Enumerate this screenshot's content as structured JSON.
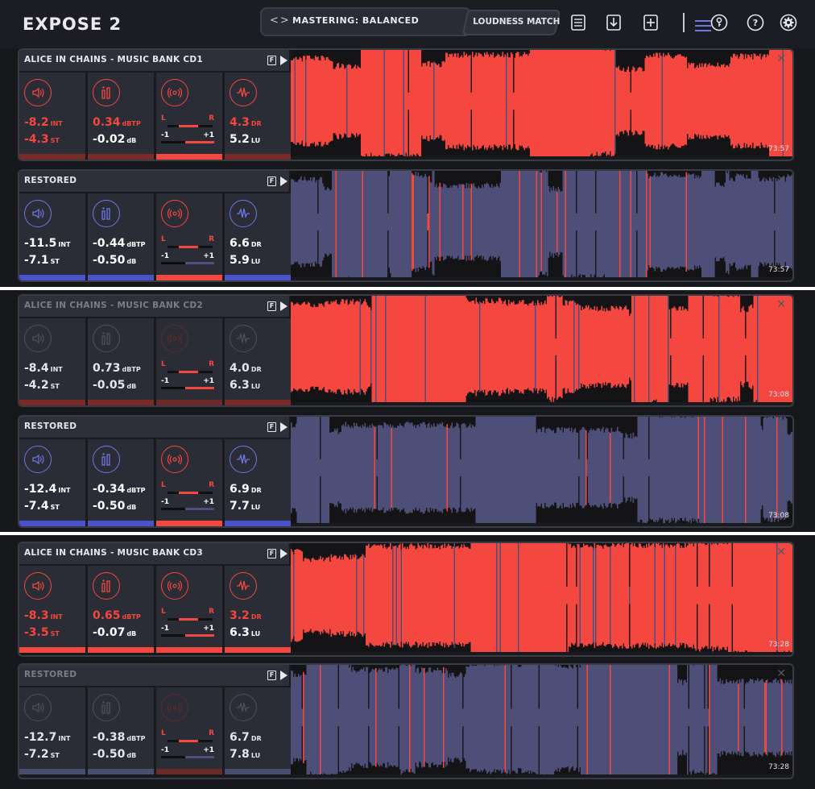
{
  "app": {
    "title": "EXPOSE 2"
  },
  "toolbar": {
    "preset_arrows": "<>",
    "preset_label": "MASTERING: BALANCED",
    "loudness_match_label": "LOUDNESS MATCH"
  },
  "colors": {
    "original": "#f4473f",
    "restored": "#4e4f79",
    "accent": "#6d76e6"
  },
  "tracks": [
    {
      "title": "ALICE IN CHAINS - MUSIC BANK CD1",
      "time": "73:57",
      "int": "-8.2",
      "int_unit": "INT",
      "st": "-4.3",
      "st_unit": "ST",
      "tp": "0.34",
      "tp_unit": "dBTP",
      "db": "-0.02",
      "db_unit": "dB",
      "dr": "4.3",
      "dr_unit": "DR",
      "lu": "5.2",
      "lu_unit": "LU",
      "l": "L",
      "r": "R",
      "minus": "-1",
      "plus": "+1"
    },
    {
      "title": "RESTORED",
      "time": "73:57",
      "int": "-11.5",
      "int_unit": "INT",
      "st": "-7.1",
      "st_unit": "ST",
      "tp": "-0.44",
      "tp_unit": "dBTP",
      "db": "-0.50",
      "db_unit": "dB",
      "dr": "6.6",
      "dr_unit": "DR",
      "lu": "5.9",
      "lu_unit": "LU",
      "l": "L",
      "r": "R",
      "minus": "-1",
      "plus": "+1"
    },
    {
      "title": "ALICE IN CHAINS - MUSIC BANK CD2",
      "time": "73:08",
      "int": "-8.4",
      "int_unit": "INT",
      "st": "-4.2",
      "st_unit": "ST",
      "tp": "0.73",
      "tp_unit": "dBTP",
      "db": "-0.05",
      "db_unit": "dB",
      "dr": "4.0",
      "dr_unit": "DR",
      "lu": "6.3",
      "lu_unit": "LU",
      "l": "L",
      "r": "R",
      "minus": "-1",
      "plus": "+1"
    },
    {
      "title": "RESTORED",
      "time": "73:08",
      "int": "-12.4",
      "int_unit": "INT",
      "st": "-7.4",
      "st_unit": "ST",
      "tp": "-0.34",
      "tp_unit": "dBTP",
      "db": "-0.50",
      "db_unit": "dB",
      "dr": "6.9",
      "dr_unit": "DR",
      "lu": "7.7",
      "lu_unit": "LU",
      "l": "L",
      "r": "R",
      "minus": "-1",
      "plus": "+1"
    },
    {
      "title": "ALICE IN CHAINS - MUSIC BANK CD3",
      "time": "73:28",
      "int": "-8.3",
      "int_unit": "INT",
      "st": "-3.5",
      "st_unit": "ST",
      "tp": "0.65",
      "tp_unit": "dBTP",
      "db": "-0.07",
      "db_unit": "dB",
      "dr": "3.2",
      "dr_unit": "DR",
      "lu": "6.3",
      "lu_unit": "LU",
      "l": "L",
      "r": "R",
      "minus": "-1",
      "plus": "+1"
    },
    {
      "title": "RESTORED",
      "time": "73:28",
      "int": "-12.7",
      "int_unit": "INT",
      "st": "-7.2",
      "st_unit": "ST",
      "tp": "-0.38",
      "tp_unit": "dBTP",
      "db": "-0.50",
      "db_unit": "dB",
      "dr": "6.7",
      "dr_unit": "DR",
      "lu": "7.8",
      "lu_unit": "LU",
      "l": "L",
      "r": "R",
      "minus": "-1",
      "plus": "+1"
    }
  ]
}
